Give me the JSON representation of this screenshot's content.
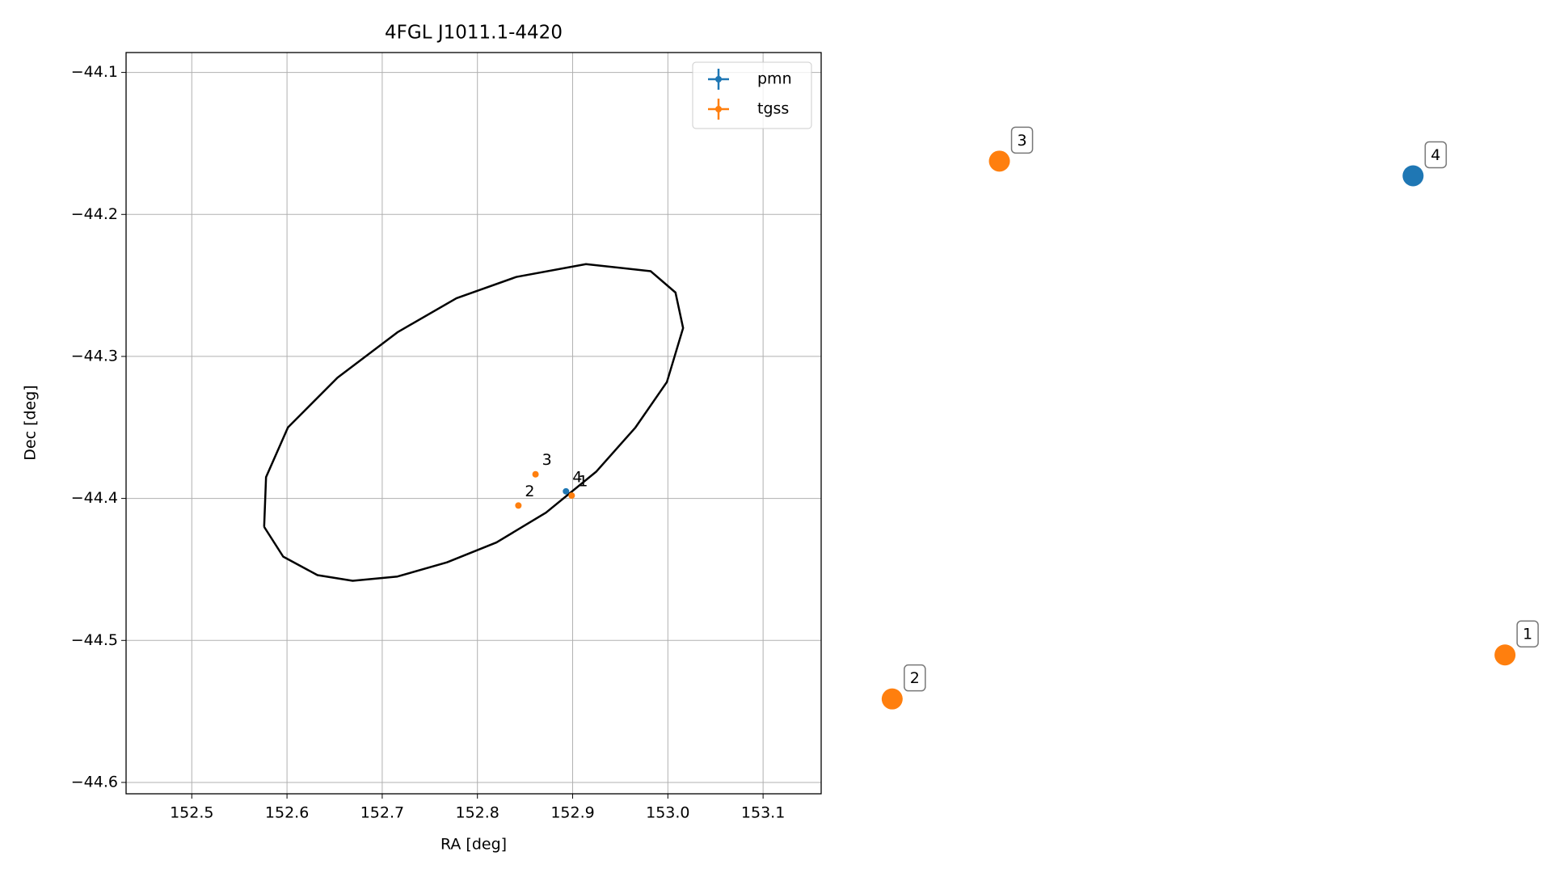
{
  "chart_data": [
    {
      "type": "scatter",
      "title": "4FGL J1011.1-4420",
      "xlabel": "RA [deg]",
      "ylabel": "Dec [deg]",
      "xlim": [
        152.431,
        153.161
      ],
      "ylim": [
        -44.608,
        -44.086
      ],
      "xticks": [
        152.5,
        152.6,
        152.7,
        152.8,
        152.9,
        {
          "value": 153,
          "label": "153.0"
        },
        153.1
      ],
      "yticks": [
        {
          "value": -44.1,
          "label": "−44.1"
        },
        {
          "value": -44.2,
          "label": "−44.2"
        },
        {
          "value": -44.3,
          "label": "−44.3"
        },
        {
          "value": -44.4,
          "label": "−44.4"
        },
        {
          "value": -44.5,
          "label": "−44.5"
        },
        {
          "value": -44.6,
          "label": "−44.6"
        }
      ],
      "grid": true,
      "legend": "upper right",
      "series": [
        {
          "name": "pmn",
          "color": "#1f77b4",
          "x": [
            152.893
          ],
          "y": [
            -44.395
          ],
          "labels": [
            "4"
          ]
        },
        {
          "name": "tgss",
          "color": "#ff7f0e",
          "x": [
            152.899,
            152.843,
            152.861
          ],
          "y": [
            -44.398,
            -44.405,
            -44.383
          ],
          "labels": [
            "1",
            "2",
            "3"
          ]
        }
      ],
      "ellipse": {
        "color": "#000000",
        "x": [
          152.576,
          152.596,
          152.632,
          152.669,
          152.716,
          152.768,
          152.82,
          152.872,
          152.925,
          152.966,
          152.999,
          153.016,
          153.008,
          152.982,
          152.914,
          152.841,
          152.778,
          152.716,
          152.653,
          152.601,
          152.578,
          152.576
        ],
        "y": [
          -44.42,
          -44.441,
          -44.454,
          -44.458,
          -44.455,
          -44.445,
          -44.431,
          -44.41,
          -44.381,
          -44.35,
          -44.318,
          -44.28,
          -44.255,
          -44.24,
          -44.235,
          -44.244,
          -44.259,
          -44.283,
          -44.315,
          -44.35,
          -44.385,
          -44.42
        ]
      }
    },
    {
      "type": "scatter",
      "axes": false,
      "xlim": [
        152.8405,
        152.9018
      ],
      "ylim": [
        -44.4063,
        -44.3817
      ],
      "series": [
        {
          "color": "#ff7f0e",
          "x": [
            152.899,
            152.843,
            152.8528
          ],
          "y": [
            -44.4032,
            -44.405,
            -44.383
          ],
          "labels": [
            "1",
            "2",
            "3"
          ]
        },
        {
          "color": "#1f77b4",
          "x": [
            152.8906
          ],
          "y": [
            -44.3836
          ],
          "labels": [
            "4"
          ]
        }
      ]
    }
  ]
}
